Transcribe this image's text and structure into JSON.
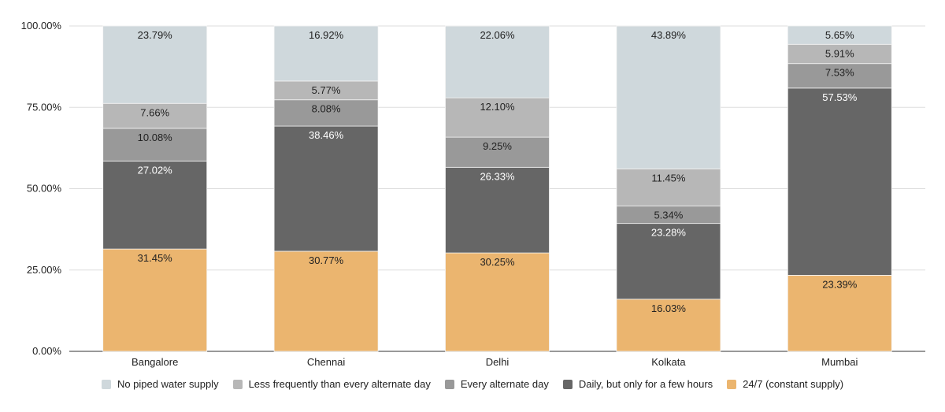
{
  "chart_data": {
    "type": "bar",
    "stacked": true,
    "title": "",
    "xlabel": "",
    "ylabel": "",
    "ylim": [
      0,
      100
    ],
    "y_ticks": [
      "0.00%",
      "25.00%",
      "50.00%",
      "75.00%",
      "100.00%"
    ],
    "grid": true,
    "legend_position": "bottom",
    "categories": [
      "Bangalore",
      "Chennai",
      "Delhi",
      "Kolkata",
      "Mumbai"
    ],
    "series": [
      {
        "name": "24/7 (constant supply)",
        "color": "#ebb56f",
        "label_color": "#222222",
        "values": [
          31.45,
          30.77,
          30.25,
          16.03,
          23.39
        ]
      },
      {
        "name": "Daily, but only for a few hours",
        "color": "#666666",
        "label_color": "#ffffff",
        "values": [
          27.02,
          38.46,
          26.33,
          23.28,
          57.53
        ]
      },
      {
        "name": "Every alternate day",
        "color": "#999999",
        "label_color": "#222222",
        "values": [
          10.08,
          8.08,
          9.25,
          5.34,
          7.53
        ]
      },
      {
        "name": "Less frequently than every alternate day",
        "color": "#b7b7b7",
        "label_color": "#222222",
        "values": [
          7.66,
          5.77,
          12.1,
          11.45,
          5.91
        ]
      },
      {
        "name": "No piped water supply",
        "color": "#cfd8dc",
        "label_color": "#222222",
        "values": [
          23.79,
          16.92,
          22.06,
          43.89,
          5.65
        ]
      }
    ]
  }
}
